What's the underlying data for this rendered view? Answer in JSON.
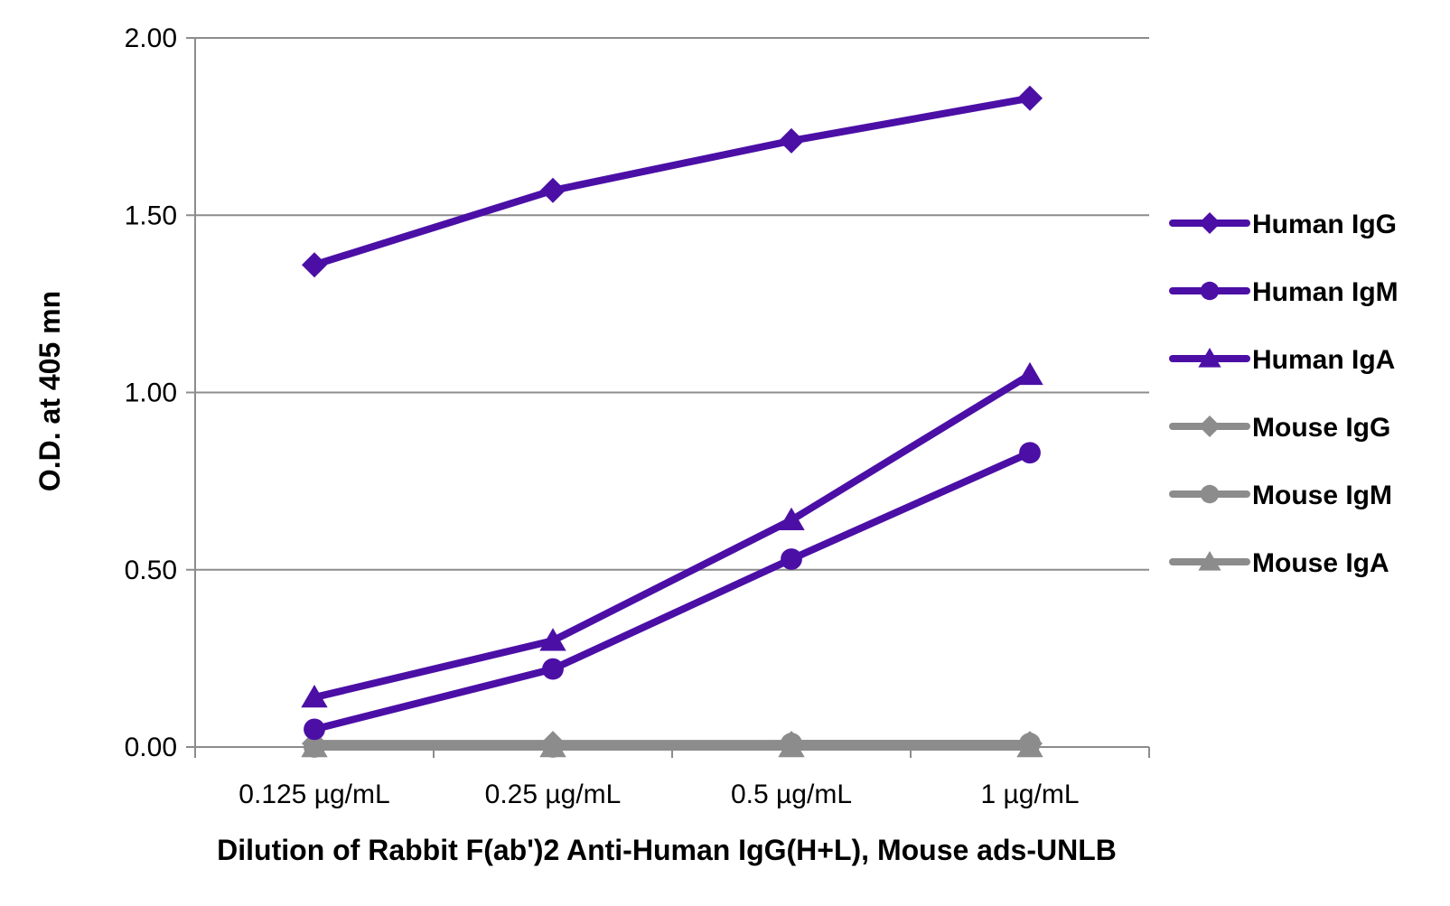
{
  "chart_data": {
    "type": "line",
    "title": "",
    "xlabel": "Dilution of Rabbit F(ab')2 Anti-Human IgG(H+L), Mouse ads-UNLB",
    "ylabel": "O.D. at 405 mn",
    "categories": [
      "0.125 µg/mL",
      "0.25 µg/mL",
      "0.5 µg/mL",
      "1 µg/mL"
    ],
    "ylim": [
      0,
      2
    ],
    "yticks": [
      "0.00",
      "0.50",
      "1.00",
      "1.50",
      "2.00"
    ],
    "grid": "horizontal",
    "legend_position": "right",
    "series": [
      {
        "name": "Human IgG",
        "values": [
          1.36,
          1.57,
          1.71,
          1.83
        ],
        "color": "#4B0FA6",
        "marker": "diamond"
      },
      {
        "name": "Human IgM",
        "values": [
          0.05,
          0.22,
          0.53,
          0.83
        ],
        "color": "#4B0FA6",
        "marker": "circle"
      },
      {
        "name": "Human IgA",
        "values": [
          0.14,
          0.3,
          0.64,
          1.05
        ],
        "color": "#4B0FA6",
        "marker": "triangle"
      },
      {
        "name": "Mouse IgG",
        "values": [
          0.01,
          0.01,
          0.01,
          0.01
        ],
        "color": "#8C8C8C",
        "marker": "diamond"
      },
      {
        "name": "Mouse IgM",
        "values": [
          0.0,
          0.0,
          0.01,
          0.01
        ],
        "color": "#8C8C8C",
        "marker": "circle"
      },
      {
        "name": "Mouse IgA",
        "values": [
          0.0,
          0.0,
          0.0,
          0.0
        ],
        "color": "#8C8C8C",
        "marker": "triangle"
      }
    ]
  }
}
